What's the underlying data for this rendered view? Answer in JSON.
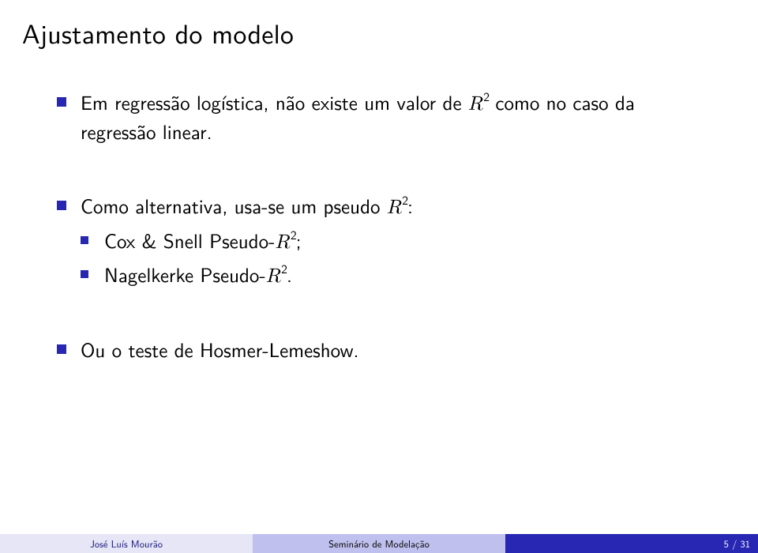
{
  "title": "Ajustamento do modelo",
  "bullets": {
    "b1_pre": "Em regressão logística, não existe um valor de ",
    "b1_var": "R",
    "b1_exp": "2",
    "b1_post": " como no caso da regressão linear.",
    "b2_pre": "Como alternativa, usa-se um pseudo ",
    "b2_var": "R",
    "b2_exp": "2",
    "b2_post": ":",
    "s1_pre": "Cox & Snell Pseudo-",
    "s1_var": "R",
    "s1_exp": "2",
    "s1_post": ";",
    "s2_pre": "Nagelkerke Pseudo-",
    "s2_var": "R",
    "s2_exp": "2",
    "s2_post": ".",
    "b3": "Ou o teste de Hosmer-Lemeshow."
  },
  "footer": {
    "author": "José Luís Mourão",
    "mid": "Seminário de Modelação",
    "page": "5 / 31"
  },
  "colors": {
    "accent": "#2727b3",
    "footer_light": "#e6e6f7",
    "footer_mid": "#c0c0ef"
  }
}
